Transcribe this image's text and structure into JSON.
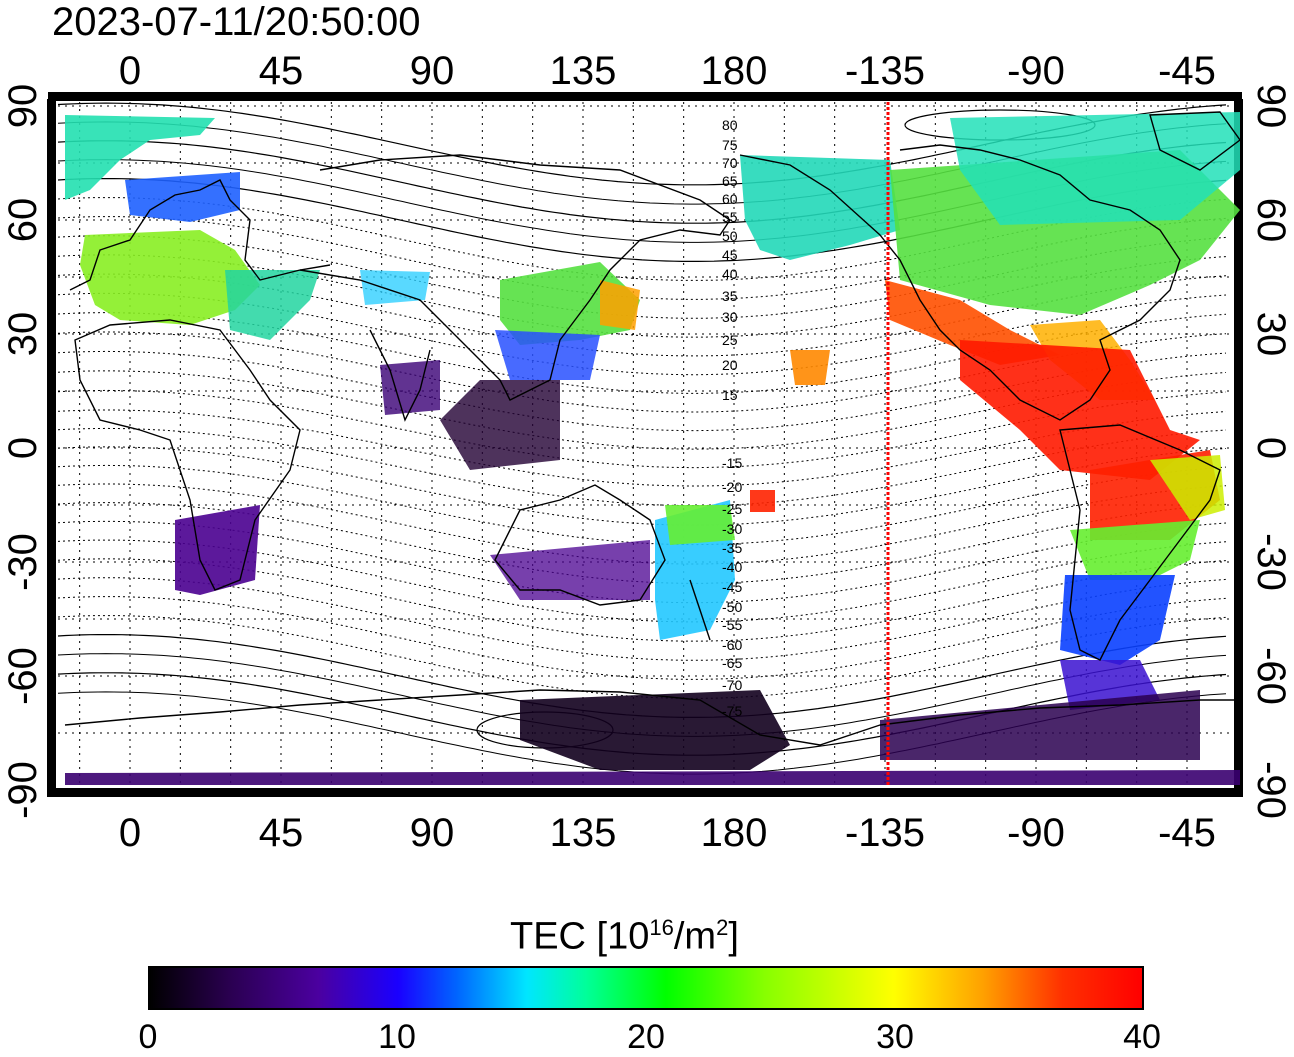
{
  "timestamp": "2023-07-11/20:50:00",
  "map": {
    "top_lon_labels": [
      "0",
      "45",
      "90",
      "135",
      "180",
      "-135",
      "-90",
      "-45"
    ],
    "bottom_lon_labels": [
      "0",
      "45",
      "90",
      "135",
      "180",
      "-135",
      "-90",
      "-45"
    ],
    "left_lat_labels": [
      "90",
      "60",
      "30",
      "0",
      "-30",
      "-60",
      "-90"
    ],
    "right_lat_labels": [
      "90",
      "60",
      "30",
      "0",
      "-30",
      "-60",
      "-90"
    ],
    "contour_labels": [
      "80",
      "75",
      "70",
      "65",
      "60",
      "55",
      "50",
      "45",
      "40",
      "35",
      "30",
      "25",
      "20",
      "15",
      "-15",
      "-20",
      "-25",
      "-30",
      "-35",
      "-40",
      "-45",
      "-50",
      "-55",
      "-60",
      "-65",
      "-70",
      "-75"
    ],
    "terminator_longitude": -133,
    "terminator_color": "#ff0000"
  },
  "colorbar": {
    "title_main": "TEC  [10",
    "title_sup1": "16",
    "title_mid": "/m",
    "title_sup2": "2",
    "title_end": "]",
    "tick_labels": [
      "0",
      "10",
      "20",
      "30",
      "40"
    ],
    "min": 0,
    "max": 40,
    "colors": [
      "#000000",
      "#4b00a0",
      "#0000ff",
      "#00ffff",
      "#00ff00",
      "#ffff00",
      "#ff0000"
    ]
  }
}
